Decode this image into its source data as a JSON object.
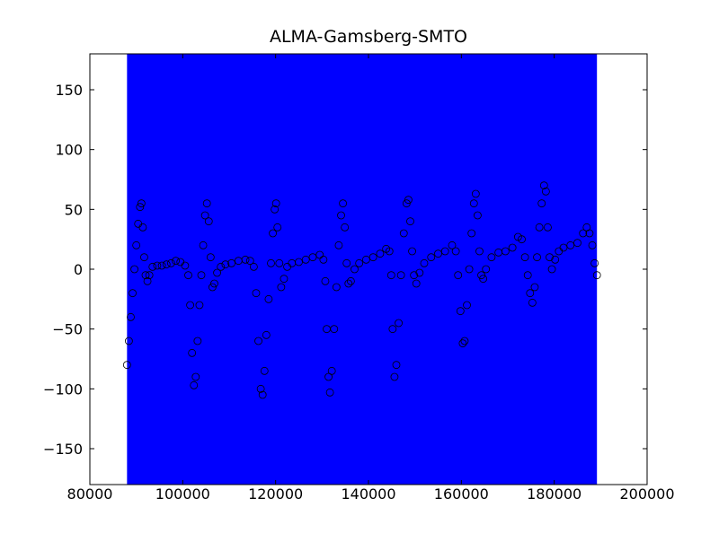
{
  "chart_data": {
    "type": "scatter",
    "title": "ALMA-Gamsberg-SMTO",
    "span": [
      88000,
      189200
    ],
    "span_color": "#0000ff",
    "marker_color": "#000000",
    "xlim": [
      80000,
      200000
    ],
    "xticks": [
      80000,
      100000,
      120000,
      140000,
      160000,
      180000,
      200000
    ],
    "ylim": [
      -180,
      180
    ],
    "yticks": [
      {
        "value": -150,
        "label": "−150"
      },
      {
        "value": -100,
        "label": "−100"
      },
      {
        "value": -50,
        "label": "−50"
      },
      0,
      50,
      100,
      150
    ],
    "x": [
      88000,
      88400,
      88800,
      89200,
      89600,
      90000,
      90400,
      90800,
      91100,
      91400,
      91700,
      92000,
      92400,
      92800,
      93500,
      94500,
      95500,
      96500,
      97500,
      98500,
      99500,
      100500,
      101200,
      101600,
      102000,
      102400,
      102800,
      103200,
      103600,
      104000,
      104400,
      104800,
      105200,
      105600,
      106000,
      106400,
      106800,
      107400,
      108200,
      109200,
      110500,
      112000,
      113500,
      114500,
      115300,
      115800,
      116300,
      116800,
      117200,
      117600,
      118000,
      118500,
      119000,
      119400,
      119800,
      120100,
      120400,
      120800,
      121200,
      121800,
      122500,
      123500,
      125000,
      126500,
      128000,
      129500,
      130300,
      130700,
      131000,
      131400,
      131700,
      132100,
      132600,
      133100,
      133600,
      134100,
      134500,
      134900,
      135300,
      135700,
      136200,
      137000,
      138000,
      139500,
      141000,
      142500,
      143800,
      144500,
      144900,
      145200,
      145600,
      146000,
      146500,
      147000,
      147600,
      148200,
      148600,
      149000,
      149400,
      149800,
      150300,
      151000,
      152000,
      153500,
      155000,
      156500,
      158000,
      158800,
      159300,
      159800,
      160300,
      160700,
      161200,
      161700,
      162200,
      162700,
      163100,
      163500,
      163900,
      164300,
      164700,
      165300,
      166500,
      168000,
      169500,
      171000,
      172200,
      173000,
      173700,
      174300,
      174800,
      175300,
      175800,
      176300,
      176800,
      177300,
      177800,
      178200,
      178600,
      179000,
      179500,
      180200,
      181000,
      182000,
      183500,
      185000,
      186200,
      187000,
      187600,
      188200,
      188700,
      189200
    ],
    "y": [
      -80,
      -60,
      -40,
      -20,
      0,
      20,
      38,
      52,
      55,
      35,
      10,
      -5,
      -10,
      -5,
      2,
      3,
      3,
      4,
      5,
      7,
      6,
      3,
      -5,
      -30,
      -70,
      -97,
      -90,
      -60,
      -30,
      -5,
      20,
      45,
      55,
      40,
      10,
      -15,
      -12,
      -3,
      2,
      4,
      5,
      7,
      8,
      7,
      2,
      -20,
      -60,
      -100,
      -105,
      -85,
      -55,
      -25,
      5,
      30,
      50,
      55,
      35,
      5,
      -15,
      -8,
      2,
      5,
      6,
      8,
      10,
      12,
      8,
      -10,
      -50,
      -90,
      -103,
      -85,
      -50,
      -15,
      20,
      45,
      55,
      35,
      5,
      -12,
      -10,
      0,
      5,
      8,
      10,
      13,
      17,
      15,
      -5,
      -50,
      -90,
      -80,
      -45,
      -5,
      30,
      55,
      58,
      40,
      15,
      -5,
      -12,
      -3,
      5,
      10,
      13,
      15,
      20,
      15,
      -5,
      -35,
      -62,
      -60,
      -30,
      0,
      30,
      55,
      63,
      45,
      15,
      -5,
      -8,
      0,
      10,
      14,
      15,
      18,
      27,
      25,
      10,
      -5,
      -20,
      -28,
      -15,
      10,
      35,
      55,
      70,
      65,
      35,
      10,
      0,
      8,
      15,
      18,
      20,
      22,
      30,
      35,
      30,
      20,
      5,
      -5
    ]
  }
}
